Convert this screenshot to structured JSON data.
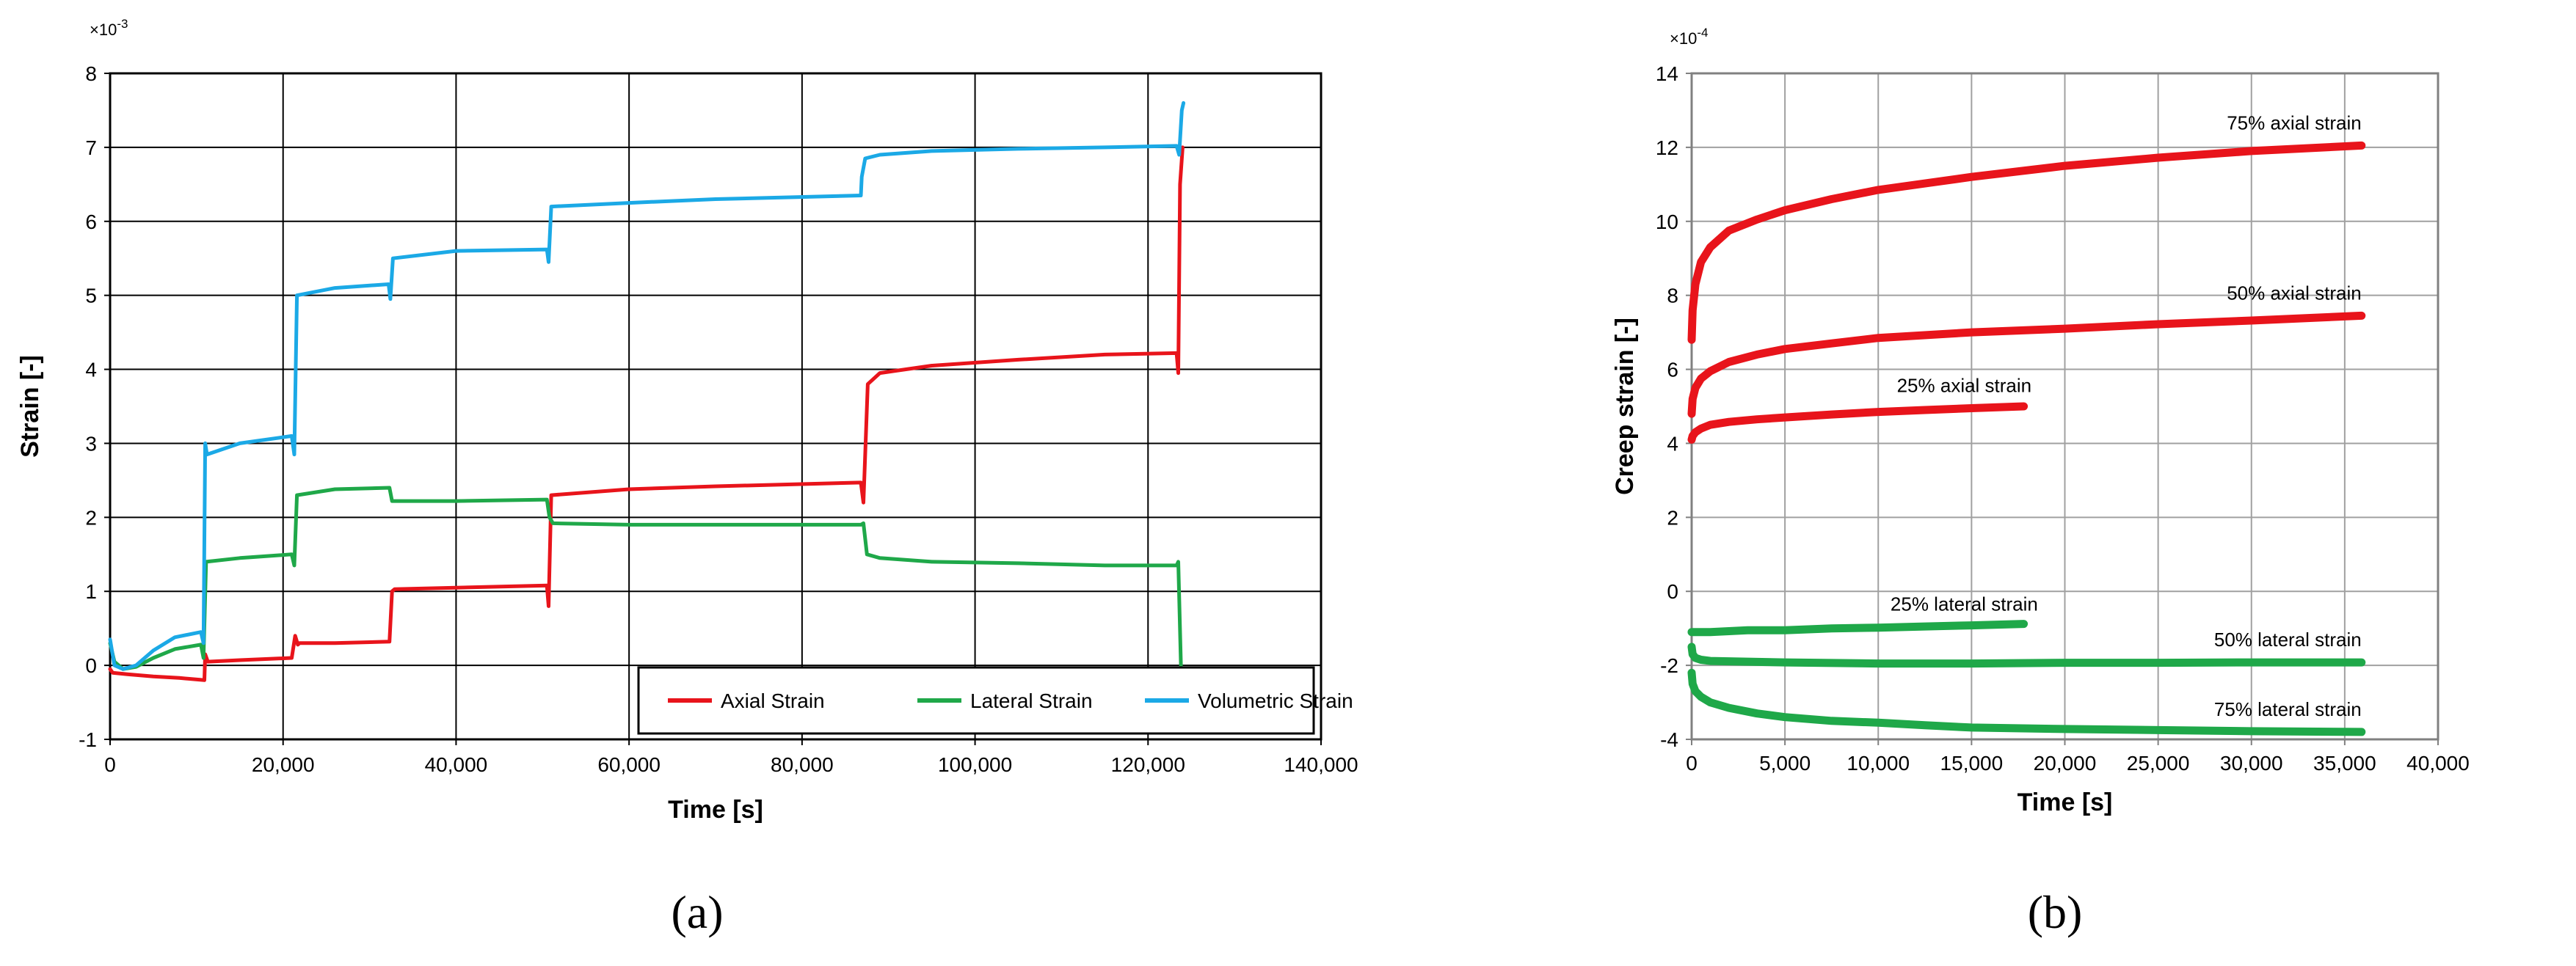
{
  "chart_data": [
    {
      "type": "line",
      "panel_label": "(a)",
      "xlabel": "Time [s]",
      "ylabel": "Strain [-]",
      "y_multiplier": "×10",
      "y_exponent": "-3",
      "xlim": [
        0,
        140000
      ],
      "ylim": [
        -1,
        8
      ],
      "xticks": [
        "0",
        "20,000",
        "40,000",
        "60,000",
        "80,000",
        "100,000",
        "120,000",
        "140,000"
      ],
      "yticks": [
        "-1",
        "0",
        "1",
        "2",
        "3",
        "4",
        "5",
        "6",
        "7",
        "8"
      ],
      "grid": true,
      "legend_position": "bottom-right",
      "series": [
        {
          "name": "Axial Strain",
          "color": "#e8141b",
          "x": [
            0,
            300,
            2000,
            5000,
            8000,
            10900,
            11000,
            11300,
            15000,
            21000,
            21400,
            21700,
            21900,
            26000,
            32300,
            32600,
            32900,
            40000,
            50500,
            50700,
            51000,
            60000,
            70000,
            86800,
            87100,
            87600,
            89000,
            95000,
            105000,
            115000,
            123300,
            123500,
            123700,
            124000
          ],
          "y": [
            -0.05,
            -0.1,
            -0.12,
            -0.15,
            -0.17,
            -0.2,
            0.15,
            0.05,
            0.07,
            0.1,
            0.4,
            0.28,
            0.3,
            0.3,
            0.32,
            1.0,
            1.03,
            1.05,
            1.08,
            0.8,
            2.3,
            2.38,
            2.42,
            2.47,
            2.2,
            3.8,
            3.95,
            4.05,
            4.13,
            4.2,
            4.22,
            3.95,
            6.5,
            7.0
          ]
        },
        {
          "name": "Lateral Strain",
          "color": "#1fa849",
          "x": [
            0,
            500,
            1500,
            3000,
            5000,
            7500,
            10500,
            10800,
            11100,
            15000,
            21000,
            21300,
            21600,
            26000,
            32300,
            32600,
            40000,
            50500,
            50800,
            51200,
            60000,
            70000,
            86800,
            87100,
            87500,
            89000,
            95000,
            105000,
            115000,
            123300,
            123500,
            123800
          ],
          "y": [
            0.3,
            0.05,
            -0.05,
            -0.02,
            0.1,
            0.22,
            0.28,
            0.1,
            1.4,
            1.45,
            1.5,
            1.35,
            2.3,
            2.38,
            2.4,
            2.22,
            2.22,
            2.24,
            2.0,
            1.92,
            1.9,
            1.9,
            1.9,
            1.92,
            1.5,
            1.45,
            1.4,
            1.38,
            1.35,
            1.35,
            1.4,
            0.0
          ]
        },
        {
          "name": "Volumetric Strain",
          "color": "#1ba9e6",
          "x": [
            0,
            500,
            1500,
            3000,
            5000,
            7500,
            10500,
            10800,
            11000,
            11200,
            15000,
            21000,
            21300,
            21600,
            26000,
            32200,
            32400,
            32700,
            40000,
            50500,
            50700,
            51000,
            60000,
            70000,
            86800,
            86900,
            87300,
            89000,
            95000,
            105000,
            115000,
            123300,
            123600,
            123900,
            124100
          ],
          "y": [
            0.35,
            0.0,
            -0.05,
            0.0,
            0.2,
            0.38,
            0.45,
            0.3,
            3.0,
            2.85,
            3.0,
            3.1,
            2.85,
            5.0,
            5.1,
            5.15,
            4.95,
            5.5,
            5.6,
            5.62,
            5.45,
            6.2,
            6.25,
            6.3,
            6.35,
            6.6,
            6.85,
            6.9,
            6.95,
            6.98,
            7.0,
            7.02,
            6.9,
            7.5,
            7.6
          ]
        }
      ]
    },
    {
      "type": "line",
      "panel_label": "(b)",
      "xlabel": "Time [s]",
      "ylabel": "Creep strain [-]",
      "y_multiplier": "×10",
      "y_exponent": "-4",
      "xlim": [
        0,
        40000
      ],
      "ylim": [
        -4,
        14
      ],
      "xticks": [
        "0",
        "5,000",
        "10,000",
        "15,000",
        "20,000",
        "25,000",
        "30,000",
        "35,000",
        "40,000"
      ],
      "yticks": [
        "-4",
        "-2",
        "0",
        "2",
        "4",
        "6",
        "8",
        "10",
        "12",
        "14"
      ],
      "grid": true,
      "series": [
        {
          "name": "75% axial strain",
          "color": "#e8141b",
          "x": [
            0,
            50,
            200,
            500,
            1000,
            2000,
            3500,
            5000,
            7500,
            10000,
            15000,
            20000,
            25000,
            30000,
            35900
          ],
          "y": [
            6.8,
            7.6,
            8.3,
            8.9,
            9.3,
            9.75,
            10.05,
            10.3,
            10.6,
            10.85,
            11.2,
            11.5,
            11.72,
            11.9,
            12.05
          ]
        },
        {
          "name": "50% axial strain",
          "color": "#e8141b",
          "x": [
            0,
            50,
            200,
            500,
            1000,
            2000,
            3500,
            5000,
            7500,
            10000,
            15000,
            20000,
            25000,
            30000,
            35900
          ],
          "y": [
            4.8,
            5.2,
            5.5,
            5.75,
            5.95,
            6.2,
            6.4,
            6.55,
            6.7,
            6.85,
            7.0,
            7.1,
            7.22,
            7.32,
            7.45
          ]
        },
        {
          "name": "25% axial strain",
          "color": "#e8141b",
          "x": [
            0,
            50,
            200,
            500,
            1000,
            2000,
            3500,
            5000,
            7500,
            10000,
            12500,
            15000,
            17800
          ],
          "y": [
            4.1,
            4.2,
            4.3,
            4.4,
            4.5,
            4.58,
            4.65,
            4.7,
            4.78,
            4.85,
            4.9,
            4.95,
            5.0
          ]
        },
        {
          "name": "25% lateral strain",
          "color": "#1fa849",
          "x": [
            0,
            1000,
            3000,
            5000,
            7500,
            10000,
            12500,
            15000,
            17800
          ],
          "y": [
            -1.1,
            -1.1,
            -1.05,
            -1.05,
            -1.0,
            -0.98,
            -0.95,
            -0.92,
            -0.88
          ]
        },
        {
          "name": "50% lateral strain",
          "color": "#1fa849",
          "x": [
            0,
            50,
            200,
            500,
            1000,
            3000,
            5000,
            10000,
            15000,
            20000,
            25000,
            30000,
            35900
          ],
          "y": [
            -1.5,
            -1.7,
            -1.8,
            -1.85,
            -1.88,
            -1.9,
            -1.92,
            -1.95,
            -1.95,
            -1.93,
            -1.93,
            -1.92,
            -1.92
          ]
        },
        {
          "name": "75% lateral strain",
          "color": "#1fa849",
          "x": [
            0,
            50,
            200,
            500,
            1000,
            2000,
            3500,
            5000,
            7500,
            10000,
            12500,
            15000,
            20000,
            25000,
            30000,
            35900
          ],
          "y": [
            -2.2,
            -2.5,
            -2.7,
            -2.85,
            -3.0,
            -3.15,
            -3.3,
            -3.4,
            -3.5,
            -3.55,
            -3.62,
            -3.68,
            -3.72,
            -3.75,
            -3.78,
            -3.8
          ]
        }
      ]
    }
  ]
}
